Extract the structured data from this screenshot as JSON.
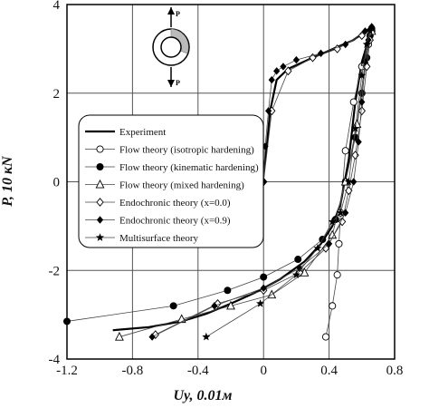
{
  "chart_data": {
    "type": "line",
    "xlabel": "Uy, 0.01м",
    "ylabel": "P, 10 кN",
    "xlim": [
      -1.2,
      0.8
    ],
    "ylim": [
      -4,
      4
    ],
    "x_ticks": [
      "-1.2",
      "-0.8",
      "-0.4",
      "0",
      "0.4",
      "0.8"
    ],
    "y_ticks": [
      "4",
      "2",
      "0",
      "-2",
      "-4"
    ],
    "grid": true,
    "legend_position": "center-left",
    "series": [
      {
        "name": "Experiment",
        "marker": "none",
        "line": "thick",
        "x": [
          -0.92,
          -0.7,
          -0.5,
          -0.35,
          -0.2,
          -0.05,
          0.1,
          0.25,
          0.35,
          0.42,
          0.47,
          0.52,
          0.56,
          0.6,
          0.64,
          0.66,
          0.55,
          0.3,
          0.15,
          0.08,
          0.04,
          0.02,
          0.0,
          0.0
        ],
        "y": [
          -3.35,
          -3.28,
          -3.15,
          -2.98,
          -2.75,
          -2.5,
          -2.2,
          -1.8,
          -1.4,
          -1.0,
          -0.5,
          0.5,
          1.8,
          2.7,
          3.2,
          3.5,
          3.2,
          2.8,
          2.55,
          2.3,
          1.6,
          0.8,
          0.2,
          0.0
        ]
      },
      {
        "name": "Flow theory (isotropic hardening)",
        "marker": "circle-open",
        "line": "thin",
        "x": [
          0.38,
          0.42,
          0.45,
          0.46,
          0.47,
          0.5,
          0.55,
          0.6,
          0.64,
          0.66
        ],
        "y": [
          -3.5,
          -2.8,
          -2.1,
          -1.4,
          -0.7,
          0.7,
          1.8,
          2.6,
          3.1,
          3.4
        ]
      },
      {
        "name": "Flow theory (kinematic hardening)",
        "marker": "circle-filled",
        "line": "thin",
        "x": [
          -1.2,
          -0.55,
          -0.22,
          0.0,
          0.21,
          0.36,
          0.44,
          0.5,
          0.56,
          0.6,
          0.63,
          0.65,
          0.66
        ],
        "y": [
          -3.15,
          -2.8,
          -2.45,
          -2.15,
          -1.75,
          -1.3,
          -0.85,
          0.0,
          1.0,
          2.0,
          2.8,
          3.3,
          3.45
        ]
      },
      {
        "name": "Flow theory (mixed hardening)",
        "marker": "triangle-open",
        "line": "thin",
        "x": [
          -0.88,
          -0.5,
          -0.2,
          0.05,
          0.25,
          0.42,
          0.5,
          0.57,
          0.62,
          0.66
        ],
        "y": [
          -3.5,
          -3.1,
          -2.8,
          -2.55,
          -2.05,
          -1.2,
          0.0,
          1.3,
          2.7,
          3.4
        ]
      },
      {
        "name": "Endochronic theory (x=0.0)",
        "marker": "diamond-open",
        "line": "thin",
        "x": [
          -0.66,
          -0.28,
          0.0,
          0.22,
          0.38,
          0.48,
          0.52,
          0.56,
          0.6,
          0.63,
          0.65,
          0.0,
          0.05,
          0.15,
          0.3,
          0.45,
          0.6
        ],
        "y": [
          -3.45,
          -2.75,
          -2.45,
          -2.05,
          -1.5,
          -0.9,
          -0.2,
          0.6,
          1.6,
          2.6,
          3.2,
          0.0,
          1.6,
          2.5,
          2.8,
          3.0,
          3.3
        ]
      },
      {
        "name": "Endochronic theory (x=0.9)",
        "marker": "diamond-filled",
        "line": "thin",
        "x": [
          -0.68,
          -0.3,
          0.0,
          0.22,
          0.4,
          0.5,
          0.55,
          0.58,
          0.6,
          0.62,
          0.64,
          0.66,
          0.0,
          0.01,
          0.03,
          0.05,
          0.08,
          0.12,
          0.2,
          0.35,
          0.5,
          0.62
        ],
        "y": [
          -3.5,
          -2.8,
          -2.4,
          -1.95,
          -1.4,
          -0.7,
          0.0,
          0.9,
          1.8,
          2.7,
          3.2,
          3.5,
          0.0,
          0.8,
          1.6,
          2.3,
          2.5,
          2.6,
          2.75,
          2.9,
          3.1,
          3.4
        ]
      },
      {
        "name": "Multisurface theory",
        "marker": "star",
        "line": "thin",
        "x": [
          -0.35,
          -0.02,
          0.2,
          0.33,
          0.42,
          0.47,
          0.52,
          0.56,
          0.6,
          0.63,
          0.65
        ],
        "y": [
          -3.5,
          -2.75,
          -2.1,
          -1.5,
          -0.9,
          -0.7,
          0.0,
          1.2,
          2.4,
          3.1,
          3.4
        ]
      }
    ]
  }
}
